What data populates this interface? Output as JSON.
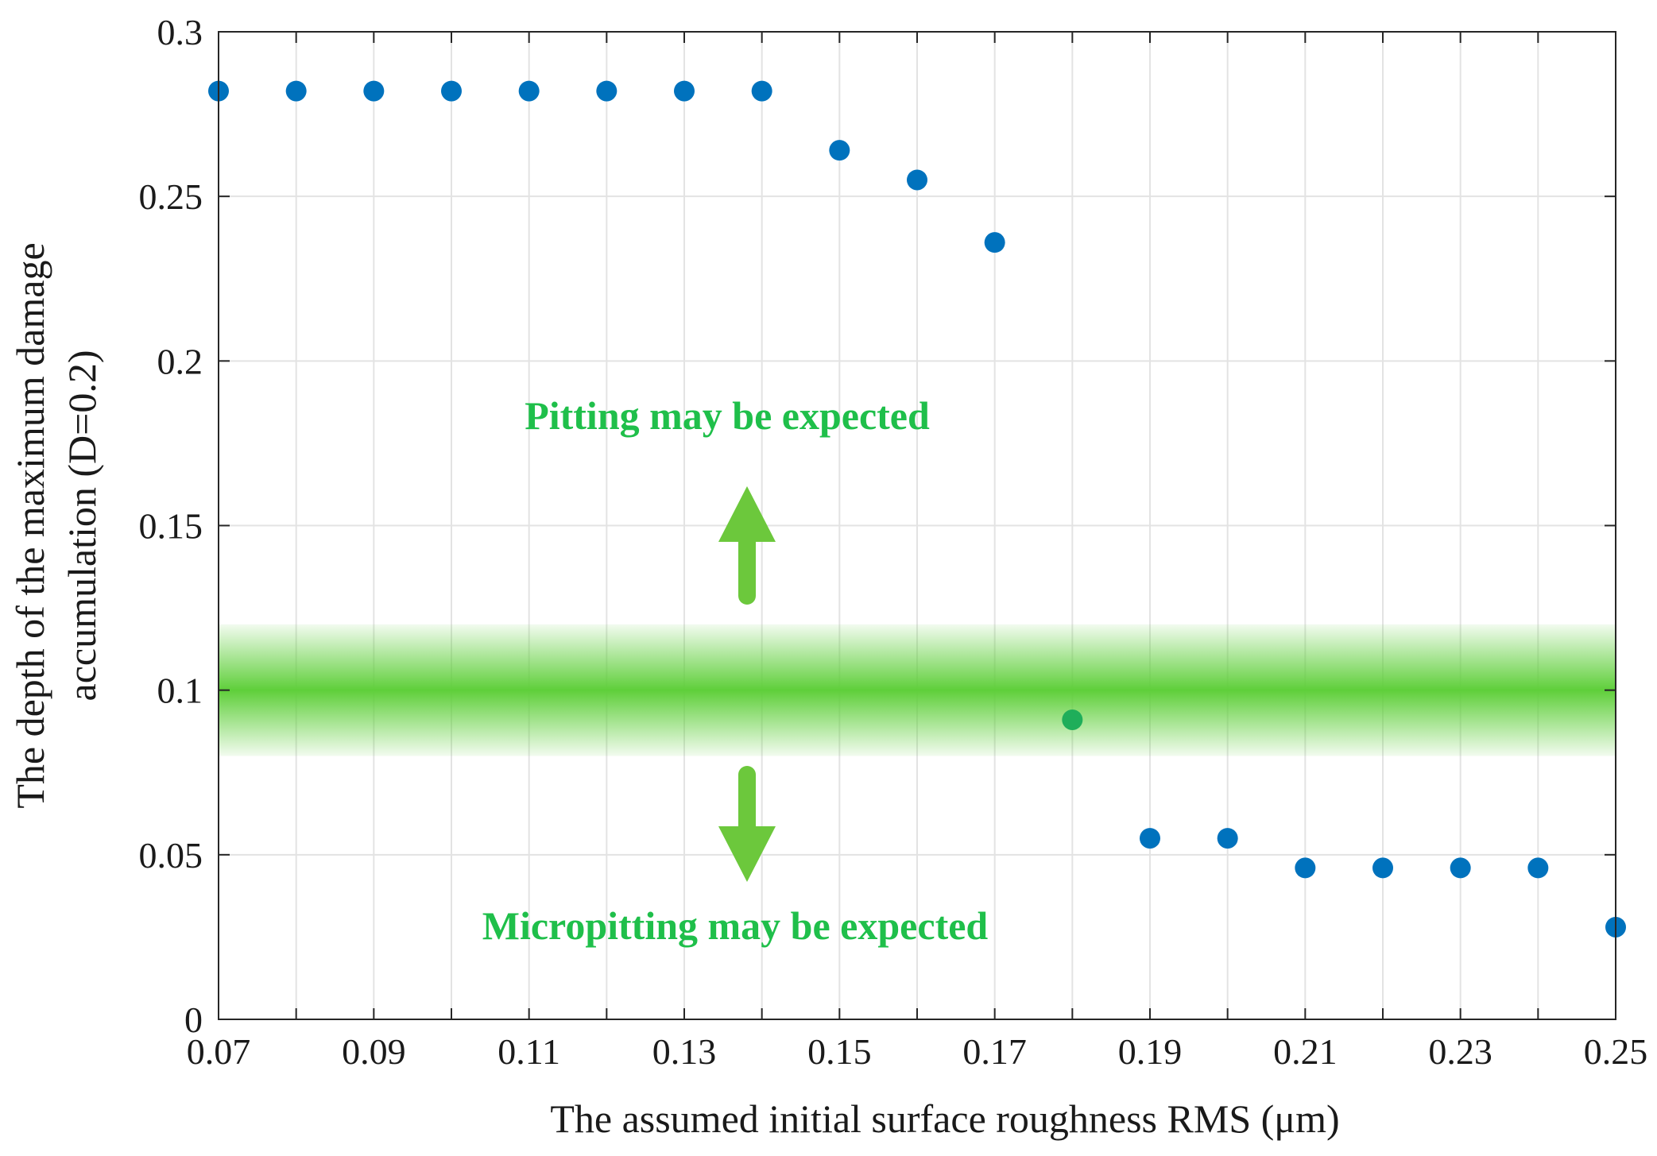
{
  "chart_data": {
    "type": "scatter",
    "title": "",
    "xlabel": "The assumed initial surface roughness RMS (μm)",
    "ylabel_line1": "The depth of the maximum damage",
    "ylabel_line2": "accumulation (D=0.2)",
    "xlim": [
      0.07,
      0.25
    ],
    "ylim": [
      0,
      0.3
    ],
    "grid": true,
    "x_ticks": [
      "0.07",
      "0.09",
      "0.11",
      "0.13",
      "0.15",
      "0.17",
      "0.19",
      "0.21",
      "0.23",
      "0.25"
    ],
    "y_ticks": [
      "0",
      "0.05",
      "0.1",
      "0.15",
      "0.2",
      "0.25",
      "0.3"
    ],
    "series": [
      {
        "name": "depth",
        "color": "#0072bd",
        "x": [
          0.07,
          0.08,
          0.09,
          0.1,
          0.11,
          0.12,
          0.13,
          0.14,
          0.15,
          0.16,
          0.17,
          0.18,
          0.19,
          0.2,
          0.21,
          0.22,
          0.23,
          0.24,
          0.25
        ],
        "y": [
          0.282,
          0.282,
          0.282,
          0.282,
          0.282,
          0.282,
          0.282,
          0.282,
          0.264,
          0.255,
          0.236,
          0.091,
          0.055,
          0.055,
          0.046,
          0.046,
          0.046,
          0.046,
          0.028
        ]
      }
    ],
    "highlight_point": {
      "x": 0.18,
      "y": 0.091,
      "color": "#1fae5a"
    },
    "band": {
      "y_center": 0.1,
      "y_min": 0.08,
      "y_max": 0.12,
      "color": "#5fcf3a"
    },
    "annotations": {
      "pitting": "Pitting may be expected",
      "micropitting": "Micropitting may be expected"
    },
    "arrow_color": "#6cc83c"
  }
}
